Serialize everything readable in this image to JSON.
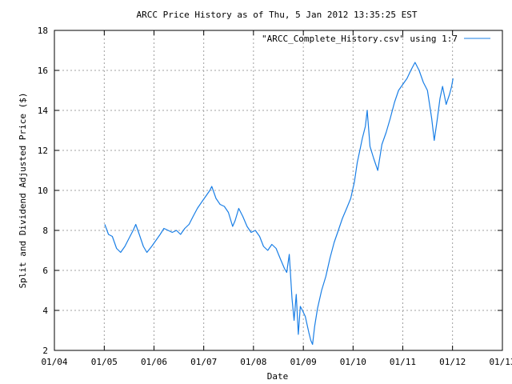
{
  "chart_data": {
    "type": "line",
    "title": "ARCC Price History as of Thu, 5 Jan 2012 13:35:25 EST",
    "xlabel": "Date",
    "ylabel": "Split and Dividend Adjusted Price ($)",
    "xlim": [
      "2004-01-01",
      "2013-01-01"
    ],
    "ylim": [
      2,
      18
    ],
    "grid": true,
    "legend_position": "top-right",
    "x_ticks": [
      "01/04",
      "01/05",
      "01/06",
      "01/07",
      "01/08",
      "01/09",
      "01/10",
      "01/11",
      "01/12",
      "01/13"
    ],
    "y_ticks": [
      "2",
      "4",
      "6",
      "8",
      "10",
      "12",
      "14",
      "16",
      "18"
    ],
    "series": [
      {
        "name": "\"ARCC_Complete_History.csv\" using 1:7",
        "color": "#1a7fe6",
        "points": [
          [
            "2005-01-05",
            8.3
          ],
          [
            "2005-02-01",
            7.8
          ],
          [
            "2005-03-01",
            7.7
          ],
          [
            "2005-04-01",
            7.1
          ],
          [
            "2005-05-01",
            6.9
          ],
          [
            "2005-06-01",
            7.2
          ],
          [
            "2005-07-01",
            7.6
          ],
          [
            "2005-08-01",
            8.0
          ],
          [
            "2005-08-20",
            8.3
          ],
          [
            "2005-09-15",
            7.8
          ],
          [
            "2005-10-15",
            7.2
          ],
          [
            "2005-11-10",
            6.9
          ],
          [
            "2005-12-15",
            7.2
          ],
          [
            "2006-01-15",
            7.5
          ],
          [
            "2006-02-15",
            7.8
          ],
          [
            "2006-03-15",
            8.1
          ],
          [
            "2006-04-15",
            8.0
          ],
          [
            "2006-05-15",
            7.9
          ],
          [
            "2006-06-15",
            8.0
          ],
          [
            "2006-07-15",
            7.8
          ],
          [
            "2006-08-15",
            8.1
          ],
          [
            "2006-09-15",
            8.3
          ],
          [
            "2006-10-15",
            8.7
          ],
          [
            "2006-11-15",
            9.1
          ],
          [
            "2006-12-15",
            9.4
          ],
          [
            "2007-01-15",
            9.7
          ],
          [
            "2007-02-15",
            10.0
          ],
          [
            "2007-03-01",
            10.2
          ],
          [
            "2007-04-01",
            9.6
          ],
          [
            "2007-05-01",
            9.3
          ],
          [
            "2007-06-01",
            9.2
          ],
          [
            "2007-07-01",
            8.9
          ],
          [
            "2007-08-01",
            8.2
          ],
          [
            "2007-08-20",
            8.5
          ],
          [
            "2007-09-15",
            9.1
          ],
          [
            "2007-10-15",
            8.7
          ],
          [
            "2007-11-15",
            8.2
          ],
          [
            "2007-12-15",
            7.9
          ],
          [
            "2008-01-15",
            8.0
          ],
          [
            "2008-02-15",
            7.7
          ],
          [
            "2008-03-15",
            7.2
          ],
          [
            "2008-04-15",
            7.0
          ],
          [
            "2008-05-15",
            7.3
          ],
          [
            "2008-06-15",
            7.1
          ],
          [
            "2008-07-15",
            6.6
          ],
          [
            "2008-08-15",
            6.1
          ],
          [
            "2008-09-01",
            5.9
          ],
          [
            "2008-09-20",
            6.8
          ],
          [
            "2008-10-10",
            4.6
          ],
          [
            "2008-10-25",
            3.5
          ],
          [
            "2008-11-10",
            4.8
          ],
          [
            "2008-11-25",
            2.8
          ],
          [
            "2008-12-10",
            4.2
          ],
          [
            "2008-12-25",
            4.0
          ],
          [
            "2009-01-15",
            3.7
          ],
          [
            "2009-02-10",
            2.9
          ],
          [
            "2009-02-25",
            2.5
          ],
          [
            "2009-03-10",
            2.3
          ],
          [
            "2009-03-25",
            3.2
          ],
          [
            "2009-04-15",
            4.1
          ],
          [
            "2009-05-15",
            5.0
          ],
          [
            "2009-06-15",
            5.7
          ],
          [
            "2009-07-15",
            6.6
          ],
          [
            "2009-08-15",
            7.4
          ],
          [
            "2009-09-15",
            8.0
          ],
          [
            "2009-10-15",
            8.6
          ],
          [
            "2009-11-15",
            9.1
          ],
          [
            "2009-12-15",
            9.6
          ],
          [
            "2010-01-10",
            10.4
          ],
          [
            "2010-02-01",
            11.4
          ],
          [
            "2010-02-20",
            12.0
          ],
          [
            "2010-03-10",
            12.6
          ],
          [
            "2010-04-01",
            13.2
          ],
          [
            "2010-04-15",
            14.0
          ],
          [
            "2010-05-05",
            12.2
          ],
          [
            "2010-06-01",
            11.6
          ],
          [
            "2010-07-01",
            11.0
          ],
          [
            "2010-08-01",
            12.3
          ],
          [
            "2010-09-01",
            12.9
          ],
          [
            "2010-10-01",
            13.6
          ],
          [
            "2010-11-01",
            14.4
          ],
          [
            "2010-12-01",
            15.0
          ],
          [
            "2011-01-01",
            15.3
          ],
          [
            "2011-02-01",
            15.6
          ],
          [
            "2011-03-01",
            16.0
          ],
          [
            "2011-04-01",
            16.4
          ],
          [
            "2011-05-01",
            16.0
          ],
          [
            "2011-06-01",
            15.4
          ],
          [
            "2011-07-01",
            15.0
          ],
          [
            "2011-08-01",
            13.6
          ],
          [
            "2011-08-20",
            12.5
          ],
          [
            "2011-09-10",
            13.5
          ],
          [
            "2011-10-01",
            14.6
          ],
          [
            "2011-10-20",
            15.2
          ],
          [
            "2011-11-15",
            14.3
          ],
          [
            "2011-12-10",
            14.8
          ],
          [
            "2011-12-25",
            15.2
          ],
          [
            "2012-01-05",
            15.6
          ]
        ]
      }
    ]
  }
}
